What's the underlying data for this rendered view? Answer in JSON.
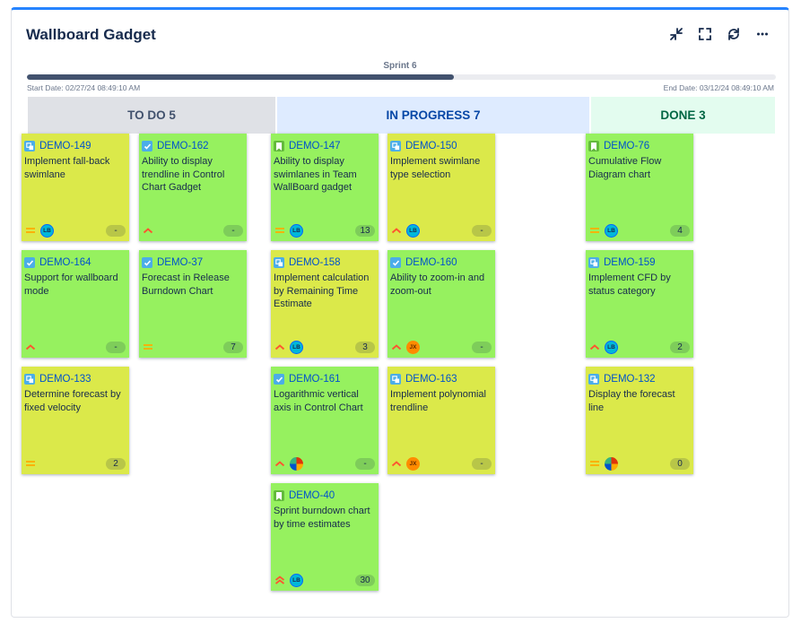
{
  "gadget": {
    "title": "Wallboard Gadget"
  },
  "sprint": {
    "name": "Sprint 6",
    "start": "Start Date: 02/27/24 08:49:10 AM",
    "end": "End Date: 03/12/24 08:49:10 AM",
    "progress_percent": 57
  },
  "columns": {
    "todo": "TO DO 5",
    "progress": "IN PROGRESS 7",
    "done": "DONE 3"
  },
  "cards": [
    {
      "key": "DEMO-149",
      "summary": "Implement fall-back swimlane",
      "type": "subtask",
      "priority": "medium",
      "assignee": "LB",
      "points": "-"
    },
    {
      "key": "DEMO-162",
      "summary": "Ability to display trendline in Control Chart Gadget",
      "type": "task",
      "priority": "high",
      "assignee": "",
      "points": "-"
    },
    {
      "key": "DEMO-164",
      "summary": "Support for wallboard mode",
      "type": "task",
      "priority": "high",
      "assignee": "",
      "points": "-"
    },
    {
      "key": "DEMO-37",
      "summary": "Forecast in Release Burndown Chart",
      "type": "task",
      "priority": "medium",
      "assignee": "",
      "points": "7"
    },
    {
      "key": "DEMO-133",
      "summary": "Determine forecast by fixed velocity",
      "type": "subtask",
      "priority": "medium",
      "assignee": "",
      "points": "2"
    },
    {
      "key": "DEMO-147",
      "summary": "Ability to display swimlanes in Team WallBoard gadget",
      "type": "story",
      "priority": "medium",
      "assignee": "LB",
      "points": "13"
    },
    {
      "key": "DEMO-150",
      "summary": "Implement swimlane type selection",
      "type": "subtask",
      "priority": "high",
      "assignee": "LB",
      "points": "-"
    },
    {
      "key": "DEMO-158",
      "summary": "Implement calculation by Remaining Time Estimate",
      "type": "subtask",
      "priority": "high",
      "assignee": "LB",
      "points": "3"
    },
    {
      "key": "DEMO-160",
      "summary": "Ability to zoom-in and zoom-out",
      "type": "task",
      "priority": "high",
      "assignee": "JX",
      "points": "-"
    },
    {
      "key": "DEMO-161",
      "summary": "Logarithmic vertical axis in Control Chart",
      "type": "task",
      "priority": "high",
      "assignee": "img",
      "points": "-"
    },
    {
      "key": "DEMO-163",
      "summary": "Implement polynomial trendline",
      "type": "subtask",
      "priority": "high",
      "assignee": "JX",
      "points": "-"
    },
    {
      "key": "DEMO-40",
      "summary": "Sprint burndown chart by time estimates",
      "type": "story",
      "priority": "highest",
      "assignee": "LB",
      "points": "30"
    },
    {
      "key": "DEMO-76",
      "summary": "Cumulative Flow Diagram chart",
      "type": "story",
      "priority": "medium",
      "assignee": "LB",
      "points": "4"
    },
    {
      "key": "DEMO-159",
      "summary": "Implement CFD by status category",
      "type": "subtask",
      "priority": "high",
      "assignee": "LB",
      "points": "2"
    },
    {
      "key": "DEMO-132",
      "summary": "Display the forecast line",
      "type": "subtask",
      "priority": "medium",
      "assignee": "img",
      "points": "0"
    }
  ],
  "colors": {
    "card_yellow": "#dbe94a",
    "card_green": "#96f15f",
    "accent": "#2684ff",
    "priority": "#ff5630"
  }
}
